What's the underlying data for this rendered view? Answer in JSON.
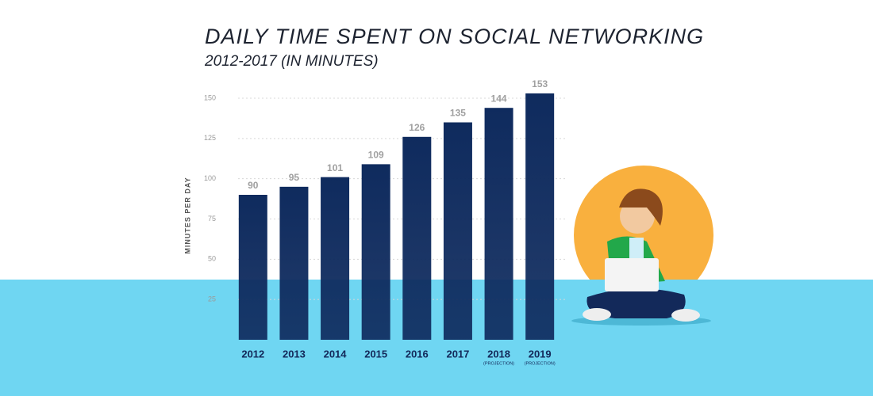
{
  "chart_data": {
    "type": "bar",
    "title": "DAILY TIME SPENT ON SOCIAL NETWORKING",
    "subtitle": "2012-2017 (IN MINUTES)",
    "y_label": "MINUTES PER DAY",
    "categories": [
      "2012",
      "2013",
      "2014",
      "2015",
      "2016",
      "2017",
      "2018",
      "2019"
    ],
    "category_notes": [
      null,
      null,
      null,
      null,
      null,
      null,
      "(PROJECTION)",
      "(PROJECTION)"
    ],
    "values": [
      90,
      95,
      101,
      109,
      126,
      135,
      144,
      153
    ],
    "color": "#0f2b5e",
    "ylim": [
      0,
      150
    ],
    "yticks": [
      25,
      50,
      75,
      100,
      125,
      150
    ],
    "grid": true
  }
}
